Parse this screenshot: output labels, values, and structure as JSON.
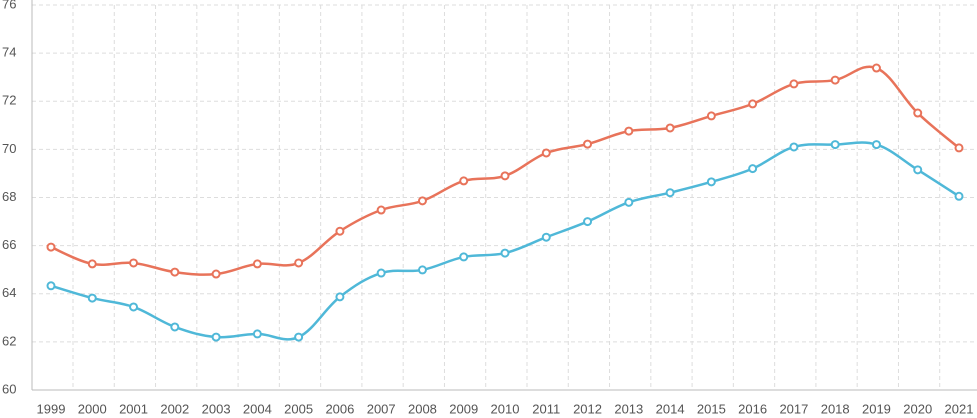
{
  "chart_data": {
    "type": "line",
    "categories": [
      "1999",
      "2000",
      "2001",
      "2002",
      "2003",
      "2004",
      "2005",
      "2006",
      "2007",
      "2008",
      "2009",
      "2010",
      "2011",
      "2012",
      "2013",
      "2014",
      "2015",
      "2016",
      "2017",
      "2018",
      "2019",
      "2020",
      "2021"
    ],
    "series": [
      {
        "color": "#e8735a",
        "values": [
          65.94,
          65.24,
          65.28,
          64.9,
          64.82,
          65.24,
          65.28,
          66.6,
          67.48,
          67.86,
          68.69,
          68.9,
          69.85,
          70.22,
          70.76,
          70.89,
          71.39,
          71.89,
          72.72,
          72.88,
          73.38,
          71.51,
          70.06
        ]
      },
      {
        "color": "#4fb8d8",
        "values": [
          64.33,
          63.82,
          63.45,
          62.62,
          62.2,
          62.33,
          62.2,
          63.87,
          64.86,
          64.99,
          65.53,
          65.69,
          66.35,
          67.0,
          67.8,
          68.2,
          68.65,
          69.2,
          70.1,
          70.2,
          70.2,
          69.15,
          68.05
        ]
      }
    ],
    "ylim": [
      60,
      76
    ],
    "yticks": [
      60,
      62,
      64,
      66,
      68,
      70,
      72,
      74,
      76
    ],
    "grid": true
  }
}
